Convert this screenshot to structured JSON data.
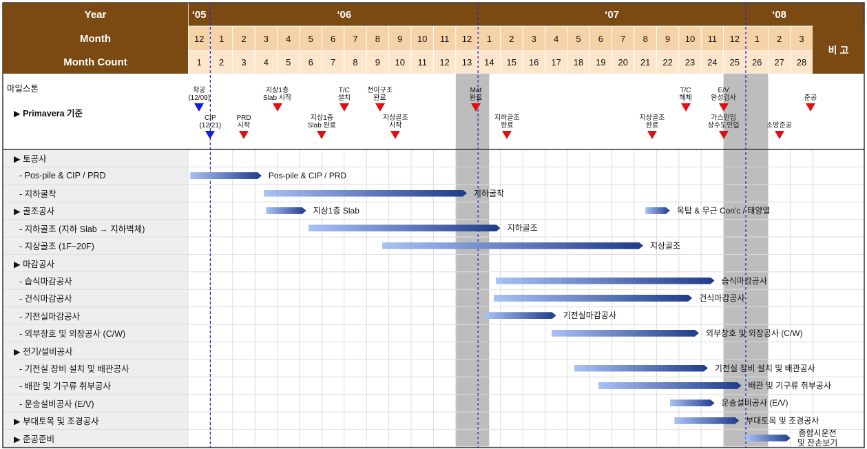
{
  "header": {
    "year_label": "Year",
    "month_label": "Month",
    "count_label": "Month Count",
    "remarks_label": "비 고",
    "years": [
      "‘05",
      "‘06",
      "‘07",
      "‘08"
    ],
    "months": [
      "12",
      "1",
      "2",
      "3",
      "4",
      "5",
      "6",
      "7",
      "8",
      "9",
      "10",
      "11",
      "12",
      "1",
      "2",
      "3",
      "4",
      "5",
      "6",
      "7",
      "8",
      "9",
      "10",
      "11",
      "12",
      "1",
      "2",
      "3"
    ],
    "counts": [
      "1",
      "2",
      "3",
      "4",
      "5",
      "6",
      "7",
      "8",
      "9",
      "10",
      "11",
      "12",
      "13",
      "14",
      "15",
      "16",
      "17",
      "18",
      "19",
      "20",
      "21",
      "22",
      "23",
      "24",
      "25",
      "26",
      "27",
      "28"
    ]
  },
  "milestone_section": {
    "title": "마일스톤",
    "subtitle": "▶ Primavera 기준"
  },
  "milestones": [
    {
      "label": "착공\n(12/09)",
      "month": 1.0,
      "row": "top",
      "color": "blue"
    },
    {
      "label": "CIP\n(12/21)",
      "month": 1.5,
      "row": "bottom",
      "color": "blue"
    },
    {
      "label": "PRD\n시작",
      "month": 3.0,
      "row": "bottom",
      "color": "red"
    },
    {
      "label": "지상1층\nSlab 시작",
      "month": 4.5,
      "row": "top",
      "color": "red"
    },
    {
      "label": "지상1층\nSlab 완료",
      "month": 6.5,
      "row": "bottom",
      "color": "red"
    },
    {
      "label": "T/C\n설치",
      "month": 7.5,
      "row": "top",
      "color": "red"
    },
    {
      "label": "전이구조\n완료",
      "month": 9.1,
      "row": "top",
      "color": "red"
    },
    {
      "label": "지상골조\n시작",
      "month": 9.8,
      "row": "bottom",
      "color": "red"
    },
    {
      "label": "Mat\n완료",
      "month": 13.4,
      "row": "top",
      "color": "red"
    },
    {
      "label": "지하골조\n완료",
      "month": 14.8,
      "row": "bottom",
      "color": "red"
    },
    {
      "label": "지상골조\n완료",
      "month": 21.3,
      "row": "bottom",
      "color": "red"
    },
    {
      "label": "T/C\n해체",
      "month": 22.8,
      "row": "top",
      "color": "red"
    },
    {
      "label": "E/V\n완성검사",
      "month": 24.5,
      "row": "top",
      "color": "red"
    },
    {
      "label": "가스인입\n상수도인입",
      "month": 24.5,
      "row": "bottom",
      "color": "red"
    },
    {
      "label": "소방준공",
      "month": 27.0,
      "row": "bottom",
      "color": "red"
    },
    {
      "label": "준공",
      "month": 28.4,
      "row": "top",
      "color": "red"
    }
  ],
  "tasks": [
    {
      "name": "▶ 토공사",
      "bar": null
    },
    {
      "name": "- Pos-pile & CIP / PRD",
      "bar": {
        "start": 1.1,
        "end": 4.3,
        "label": "Pos-pile & CIP / PRD"
      }
    },
    {
      "name": "- 지하굴착",
      "bar": {
        "start": 4.4,
        "end": 13.5,
        "label": "지하굴착"
      }
    },
    {
      "name": "▶ 골조공사",
      "bar": {
        "start": 4.5,
        "end": 6.3,
        "label": "지상1층 Slab"
      },
      "bar2": {
        "start": 21.5,
        "end": 22.6,
        "label": "옥탑 & 무근 Con'c / 태양열"
      }
    },
    {
      "name": "- 지하골조 (지하 Slab → 지하벽체)",
      "bar": {
        "start": 6.4,
        "end": 15.0,
        "label": "지하골조"
      }
    },
    {
      "name": "- 지상골조 (1F~20F)",
      "bar": {
        "start": 9.7,
        "end": 21.4,
        "label": "지상골조"
      }
    },
    {
      "name": "▶ 마감공사",
      "bar": null
    },
    {
      "name": "- 습식마감공사",
      "bar": {
        "start": 14.8,
        "end": 24.6,
        "label": "습식마감공사"
      }
    },
    {
      "name": "- 건식마감공사",
      "bar": {
        "start": 14.7,
        "end": 23.6,
        "label": "건식마감공사"
      }
    },
    {
      "name": "- 기전실마감공사",
      "bar": {
        "start": 14.3,
        "end": 17.5,
        "label": "기전실마감공사"
      }
    },
    {
      "name": "- 외부창호 및 외장공사 (C/W)",
      "bar": {
        "start": 17.3,
        "end": 23.9,
        "label": "외부창호 및 외장공사 (C/W)"
      }
    },
    {
      "name": "▶ 전기/설비공사",
      "bar": null
    },
    {
      "name": "- 기전실 장비 설치 및 배관공사",
      "bar": {
        "start": 18.3,
        "end": 24.3,
        "label": "기전실 장비 설치 및 배관공사"
      }
    },
    {
      "name": "- 배관 및 기구류 취부공사",
      "bar": {
        "start": 19.4,
        "end": 25.8,
        "label": "배관 및 기구류 취부공사"
      }
    },
    {
      "name": "- 운송설비공사 (E/V)",
      "bar": {
        "start": 22.6,
        "end": 24.6,
        "label": "운송설비공사 (E/V)"
      }
    },
    {
      "name": "▶ 부대토목 및 조경공사",
      "bar": {
        "start": 22.8,
        "end": 25.7,
        "label": "부대토목 및 조경공사"
      }
    },
    {
      "name": "▶ 준공준비",
      "bar": {
        "start": 26.0,
        "end": 28.0,
        "label": "종합시운전\n및 잔손보기"
      }
    }
  ],
  "shaded_months": [
    [
      13,
      14.5
    ],
    [
      25,
      27
    ]
  ],
  "dashed_lines_month": [
    1.5,
    13.5,
    25.5
  ],
  "colors": {
    "header_brown": "#7a4a12",
    "month_row": "#f6d2a8",
    "count_row": "#fde6cc",
    "shade": "#bdbdbd",
    "dashed": "#2030c0",
    "bar_light": "#a9c1f5",
    "bar_dark": "#1f3b8a"
  }
}
